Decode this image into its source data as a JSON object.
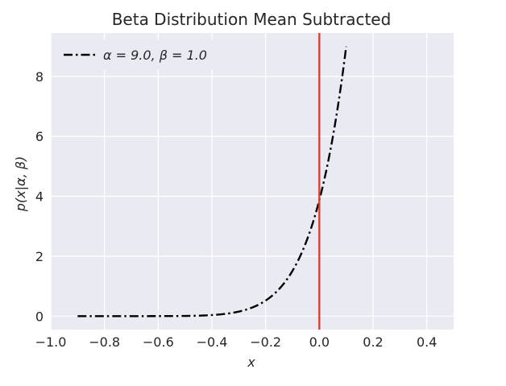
{
  "chart_data": {
    "type": "line",
    "title": "Beta Distribution Mean Subtracted",
    "xlabel": "x",
    "ylabel": "p(x|α, β)",
    "xlim": [
      -1.0,
      0.5
    ],
    "ylim": [
      -0.45,
      9.45
    ],
    "grid": true,
    "background": "#eaeaf2",
    "legend_position": "top-left",
    "xticks": [
      {
        "value": -1.0,
        "label": "−1.0"
      },
      {
        "value": -0.8,
        "label": "−0.8"
      },
      {
        "value": -0.6,
        "label": "−0.6"
      },
      {
        "value": -0.4,
        "label": "−0.4"
      },
      {
        "value": -0.2,
        "label": "−0.2"
      },
      {
        "value": 0.0,
        "label": "0.0"
      },
      {
        "value": 0.2,
        "label": "0.2"
      },
      {
        "value": 0.4,
        "label": "0.4"
      }
    ],
    "yticks": [
      {
        "value": 0,
        "label": "0"
      },
      {
        "value": 2,
        "label": "2"
      },
      {
        "value": 4,
        "label": "4"
      },
      {
        "value": 6,
        "label": "6"
      },
      {
        "value": 8,
        "label": "8"
      }
    ],
    "series": [
      {
        "name": "α = 9.0,  β = 1.0",
        "color": "#000000",
        "style": "dashdot",
        "alpha": 9.0,
        "beta": 1.0,
        "x": [
          -0.9,
          -0.85,
          -0.8,
          -0.75,
          -0.7,
          -0.65,
          -0.6,
          -0.55,
          -0.5,
          -0.45,
          -0.4,
          -0.35,
          -0.3,
          -0.25,
          -0.2,
          -0.15,
          -0.1,
          -0.05,
          0.0,
          0.05,
          0.1
        ],
        "y": [
          0.0,
          0.0,
          0.0,
          0.0,
          0.0,
          0.0,
          0.0,
          0.001,
          0.004,
          0.012,
          0.03,
          0.07,
          0.151,
          0.302,
          0.568,
          1.013,
          1.722,
          2.806,
          4.399,
          6.663,
          9.0
        ]
      }
    ],
    "vline": {
      "x": 0.0,
      "color": "#e8392e"
    }
  }
}
